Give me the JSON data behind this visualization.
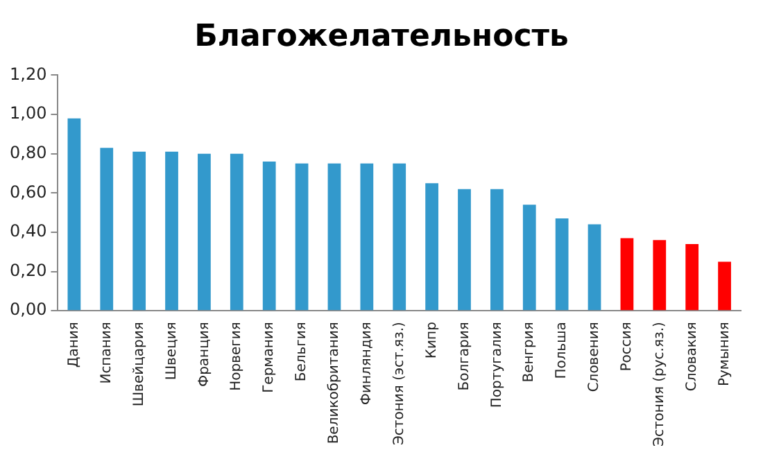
{
  "chart_data": {
    "type": "bar",
    "title": "Благожелательность",
    "categories": [
      "Дания",
      "Испания",
      "Швейцария",
      "Швеция",
      "Франция",
      "Норвегия",
      "Германия",
      "Бельгия",
      "Великобритания",
      "Финляндия",
      "Эстония (эст.яз.)",
      "Кипр",
      "Болгария",
      "Португалия",
      "Венгрия",
      "Польша",
      "Словения",
      "Россия",
      "Эстония (рус.яз.)",
      "Словакия",
      "Румыния"
    ],
    "values": [
      0.98,
      0.83,
      0.81,
      0.81,
      0.8,
      0.8,
      0.76,
      0.75,
      0.75,
      0.75,
      0.75,
      0.65,
      0.62,
      0.62,
      0.54,
      0.47,
      0.44,
      0.37,
      0.36,
      0.34,
      0.25
    ],
    "colors": [
      "#3399cc",
      "#3399cc",
      "#3399cc",
      "#3399cc",
      "#3399cc",
      "#3399cc",
      "#3399cc",
      "#3399cc",
      "#3399cc",
      "#3399cc",
      "#3399cc",
      "#3399cc",
      "#3399cc",
      "#3399cc",
      "#3399cc",
      "#3399cc",
      "#3399cc",
      "#ff0000",
      "#ff0000",
      "#ff0000",
      "#ff0000"
    ],
    "ylim": [
      0,
      1.2
    ],
    "yticks": [
      {
        "value": 0,
        "label": "0,00"
      },
      {
        "value": 0.2,
        "label": "0,20"
      },
      {
        "value": 0.4,
        "label": "0,40"
      },
      {
        "value": 0.6,
        "label": "0,60"
      },
      {
        "value": 0.8,
        "label": "0,80"
      },
      {
        "value": 1.0,
        "label": "1,00"
      },
      {
        "value": 1.2,
        "label": "1,20"
      }
    ],
    "grid": false,
    "legend": false
  }
}
